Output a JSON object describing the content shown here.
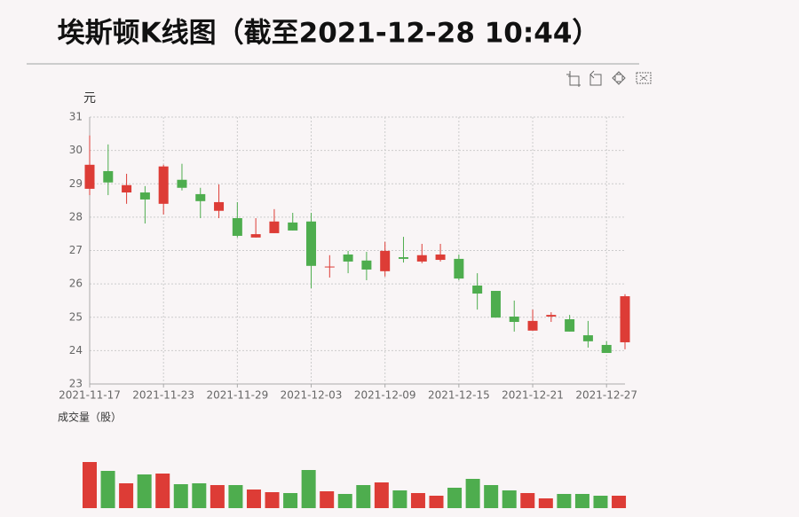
{
  "chart_data": {
    "type": "candlestick",
    "title": "埃斯顿K线图（截至2021-12-28 10:44）",
    "y_unit": "元",
    "volume_label": "成交量（股）",
    "categories": [
      "2021-11-17",
      null,
      null,
      null,
      "2021-11-23",
      null,
      null,
      null,
      "2021-11-29",
      null,
      null,
      null,
      "2021-12-03",
      null,
      null,
      null,
      "2021-12-09",
      null,
      null,
      null,
      "2021-12-15",
      null,
      null,
      null,
      "2021-12-21",
      null,
      null,
      null,
      "2021-12-27",
      null
    ],
    "open": [
      28.85,
      29.38,
      28.74,
      28.74,
      28.4,
      29.12,
      28.69,
      28.19,
      27.97,
      27.39,
      27.52,
      27.84,
      27.87,
      26.5,
      26.88,
      26.7,
      26.38,
      26.8,
      26.67,
      26.72,
      26.75,
      25.95,
      25.79,
      25.02,
      24.6,
      25.02,
      24.94,
      24.46,
      24.17,
      24.25
    ],
    "high": [
      30.45,
      30.18,
      29.3,
      28.93,
      29.57,
      29.6,
      28.88,
      28.98,
      28.45,
      27.97,
      28.24,
      28.13,
      28.13,
      26.86,
      26.99,
      26.96,
      27.26,
      27.41,
      27.2,
      27.2,
      26.88,
      26.32,
      25.79,
      25.5,
      25.23,
      25.15,
      25.07,
      24.89,
      24.28,
      25.69
    ],
    "low": [
      28.66,
      28.66,
      28.4,
      27.81,
      28.08,
      28.8,
      27.97,
      27.97,
      27.39,
      27.39,
      27.52,
      27.6,
      25.87,
      26.19,
      26.32,
      26.11,
      26.22,
      26.64,
      26.62,
      26.67,
      26.11,
      25.23,
      24.99,
      24.57,
      24.6,
      24.86,
      24.57,
      24.09,
      23.93,
      24.04
    ],
    "close": [
      29.57,
      29.04,
      28.96,
      28.53,
      29.52,
      28.88,
      28.48,
      28.45,
      27.44,
      27.49,
      27.87,
      27.6,
      26.54,
      26.52,
      26.67,
      26.43,
      26.99,
      26.75,
      26.86,
      26.88,
      26.16,
      25.71,
      24.99,
      24.86,
      24.89,
      25.07,
      24.57,
      24.28,
      23.93,
      25.63
    ],
    "volume": [
      52,
      42,
      28,
      38,
      39,
      27,
      28,
      26,
      26,
      21,
      18,
      17,
      43,
      19,
      16,
      26,
      29,
      20,
      17,
      14,
      23,
      33,
      26,
      20,
      17,
      11,
      16,
      16,
      14,
      14
    ],
    "ylim": [
      23,
      31
    ],
    "yticks": [
      23,
      24,
      25,
      26,
      27,
      28,
      29,
      30,
      31
    ],
    "grid": true,
    "up_color": "#dd3c36",
    "down_color": "#4ead4e"
  }
}
